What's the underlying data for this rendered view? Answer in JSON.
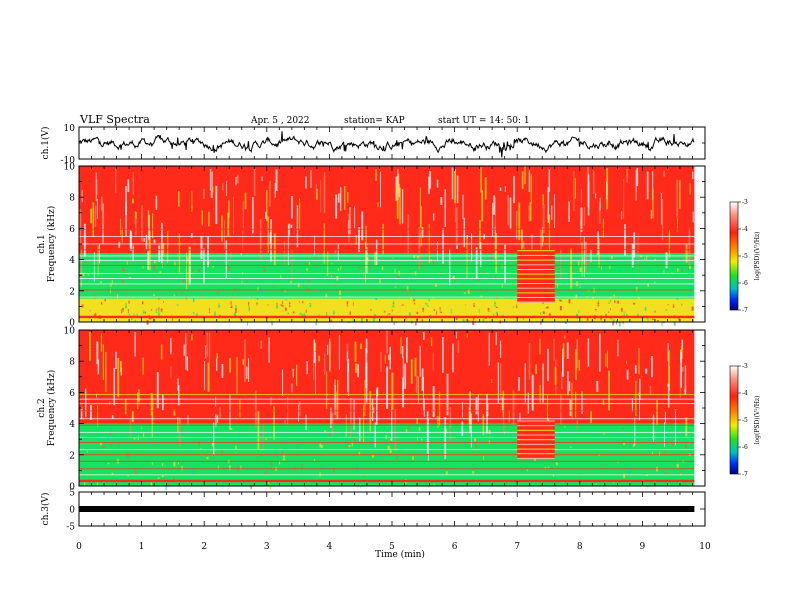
{
  "header": {
    "title": "VLF Spectra",
    "date": "Apr. 5  , 2022",
    "station": "station= KAP",
    "start": "start  UT  =   14: 50: 1"
  },
  "chart_data": [
    {
      "type": "line",
      "panel": "ch1-waveform",
      "ylabel": "ch.1(V)",
      "ylim": [
        -10,
        10
      ],
      "yticks": [
        "10",
        "-10"
      ],
      "xlim": [
        0,
        10
      ],
      "trace_end_min": 9.83,
      "trace_level_V": 0,
      "trace_amplitude_V": 4,
      "color": "#000000"
    },
    {
      "type": "heatmap",
      "panel": "ch1-spectrogram",
      "ylabel": "ch.1\nFrequency  (kHz)",
      "ylim": [
        0,
        10
      ],
      "yticks": [
        "0",
        "2",
        "4",
        "6",
        "8",
        "10"
      ],
      "xlim": [
        0,
        10
      ],
      "data_end_min": 9.83,
      "colorbar": {
        "title": "log(PSD)(V²/Hz)",
        "range": [
          -7,
          -3
        ],
        "ticks": [
          "-3",
          "-4",
          "-5",
          "-6",
          "-7"
        ]
      },
      "bands": [
        {
          "from_kHz": 0,
          "to_kHz": 1.5,
          "level": "green-yellow"
        },
        {
          "from_kHz": 1.5,
          "to_kHz": 4.4,
          "level": "green"
        },
        {
          "from_kHz": 4.4,
          "to_kHz": 10,
          "level": "red"
        }
      ],
      "burst": {
        "from_min": 7.0,
        "to_min": 7.6,
        "from_kHz": 1.3,
        "to_kHz": 4.6
      }
    },
    {
      "type": "heatmap",
      "panel": "ch2-spectrogram",
      "ylabel": "ch.2\nFrequency  (kHz)",
      "ylim": [
        0,
        10
      ],
      "yticks": [
        "0",
        "2",
        "4",
        "6",
        "8",
        "10"
      ],
      "xlim": [
        0,
        10
      ],
      "data_end_min": 9.83,
      "colorbar": {
        "title": "log(PSD)(V²/Hz)",
        "range": [
          -7,
          -3
        ],
        "ticks": [
          "-3",
          "-4",
          "-5",
          "-6",
          "-7"
        ]
      },
      "bands": [
        {
          "from_kHz": 0,
          "to_kHz": 4.0,
          "level": "green"
        },
        {
          "from_kHz": 4.0,
          "to_kHz": 10,
          "level": "red"
        }
      ],
      "burst": {
        "from_min": 7.0,
        "to_min": 7.6,
        "from_kHz": 1.8,
        "to_kHz": 4.2
      }
    },
    {
      "type": "line",
      "panel": "ch3-waveform",
      "ylabel": "ch.3(V)",
      "ylim": [
        -5,
        5
      ],
      "yticks": [
        "5",
        "0",
        "-5"
      ],
      "xlim": [
        0,
        10
      ],
      "trace_end_min": 9.83,
      "trace_level_V": 0,
      "color": "#000000"
    }
  ],
  "xaxis": {
    "label": "Time  (min)",
    "ticks": [
      "0",
      "1",
      "2",
      "3",
      "4",
      "5",
      "6",
      "7",
      "8",
      "9",
      "10"
    ]
  },
  "colors": {
    "red": "#ff2a1a",
    "yellow": "#f0e020",
    "green": "#18e060",
    "cyan": "#10c8c8"
  }
}
